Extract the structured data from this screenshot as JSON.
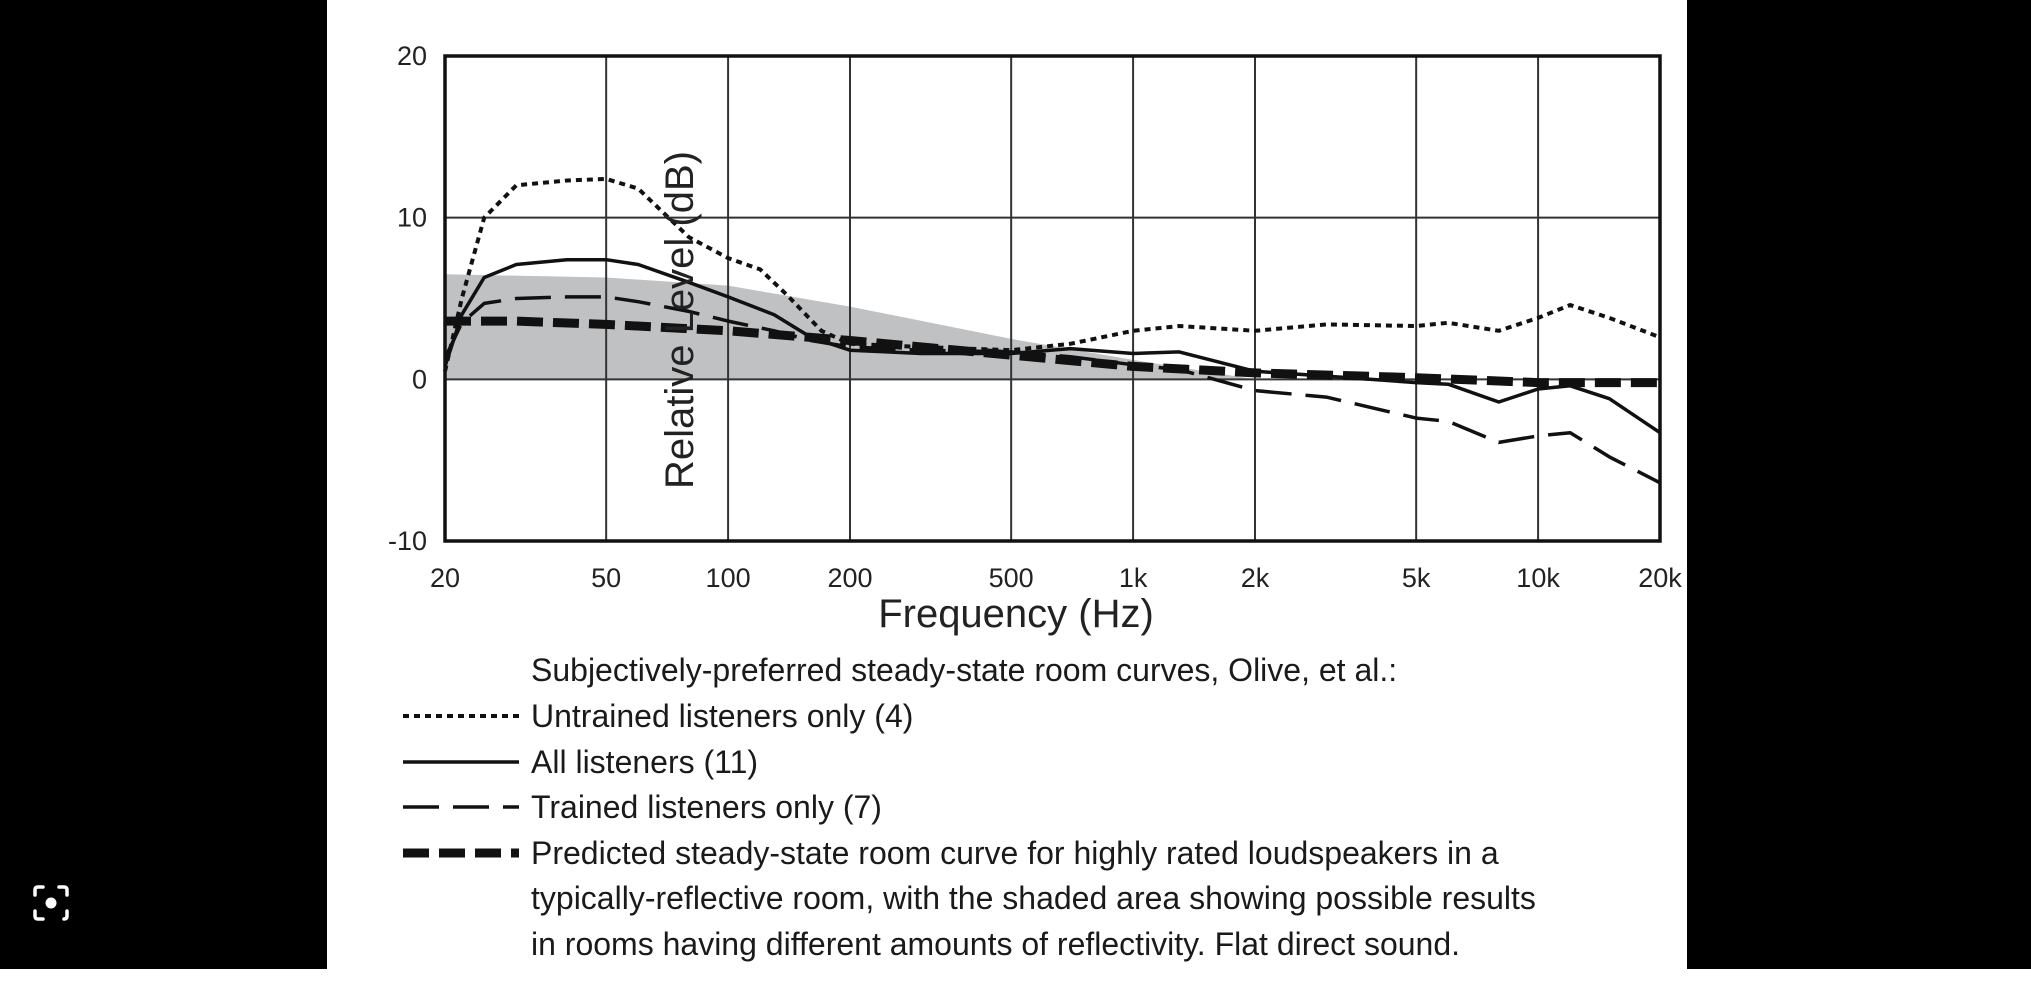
{
  "chart_data": {
    "type": "line",
    "xlabel": "Frequency (Hz)",
    "ylabel": "Relative Level (dB)",
    "xscale": "log",
    "xlim": [
      20,
      20000
    ],
    "ylim": [
      -10,
      20
    ],
    "grid": true,
    "x_ticks": [
      20,
      50,
      100,
      200,
      500,
      1000,
      2000,
      5000,
      10000,
      20000
    ],
    "x_tick_labels": [
      "20",
      "50",
      "100",
      "200",
      "500",
      "1k",
      "2k",
      "5k",
      "10k",
      "20k"
    ],
    "y_ticks": [
      20,
      10,
      0,
      -10
    ],
    "y_tick_labels": [
      "20",
      "10",
      "0",
      "-10"
    ],
    "legend_position": "below",
    "shaded_band": {
      "upper": [
        [
          20,
          6.5
        ],
        [
          50,
          6.3
        ],
        [
          100,
          5.8
        ],
        [
          200,
          4.5
        ],
        [
          500,
          2.5
        ],
        [
          1000,
          1.2
        ],
        [
          2000,
          0
        ]
      ],
      "lower": [
        [
          20,
          0
        ],
        [
          2000,
          0
        ]
      ]
    },
    "series": [
      {
        "style": "dotted",
        "points": [
          [
            20,
            0.5
          ],
          [
            22,
            5
          ],
          [
            25,
            10
          ],
          [
            30,
            12
          ],
          [
            40,
            12.3
          ],
          [
            50,
            12.4
          ],
          [
            60,
            11.8
          ],
          [
            80,
            8.8
          ],
          [
            100,
            7.5
          ],
          [
            120,
            6.8
          ],
          [
            140,
            5.2
          ],
          [
            170,
            3
          ],
          [
            200,
            2.2
          ],
          [
            300,
            2.0
          ],
          [
            500,
            1.8
          ],
          [
            700,
            2.2
          ],
          [
            1000,
            3.0
          ],
          [
            1300,
            3.3
          ],
          [
            2000,
            3.0
          ],
          [
            3000,
            3.4
          ],
          [
            5000,
            3.3
          ],
          [
            6000,
            3.5
          ],
          [
            8000,
            3.0
          ],
          [
            10000,
            3.8
          ],
          [
            12000,
            4.6
          ],
          [
            15000,
            3.8
          ],
          [
            20000,
            2.6
          ]
        ]
      },
      {
        "style": "solid",
        "points": [
          [
            20,
            0.8
          ],
          [
            22,
            4
          ],
          [
            25,
            6.3
          ],
          [
            30,
            7.1
          ],
          [
            40,
            7.4
          ],
          [
            50,
            7.4
          ],
          [
            60,
            7.1
          ],
          [
            80,
            6.0
          ],
          [
            100,
            5.1
          ],
          [
            130,
            4.0
          ],
          [
            160,
            2.6
          ],
          [
            200,
            1.8
          ],
          [
            300,
            1.6
          ],
          [
            500,
            1.6
          ],
          [
            700,
            1.9
          ],
          [
            1000,
            1.6
          ],
          [
            1300,
            1.7
          ],
          [
            2000,
            0.5
          ],
          [
            3000,
            0.2
          ],
          [
            5000,
            -0.2
          ],
          [
            6000,
            -0.3
          ],
          [
            8000,
            -1.4
          ],
          [
            10000,
            -0.6
          ],
          [
            12000,
            -0.4
          ],
          [
            15000,
            -1.2
          ],
          [
            20000,
            -3.3
          ]
        ]
      },
      {
        "style": "long-dash",
        "points": [
          [
            20,
            1.3
          ],
          [
            22,
            3.5
          ],
          [
            25,
            4.7
          ],
          [
            30,
            5.0
          ],
          [
            40,
            5.1
          ],
          [
            50,
            5.1
          ],
          [
            60,
            4.8
          ],
          [
            80,
            4.2
          ],
          [
            100,
            3.6
          ],
          [
            130,
            3.0
          ],
          [
            160,
            2.4
          ],
          [
            200,
            2.0
          ],
          [
            300,
            1.8
          ],
          [
            500,
            1.7
          ],
          [
            700,
            1.4
          ],
          [
            1000,
            0.9
          ],
          [
            1300,
            0.6
          ],
          [
            2000,
            -0.7
          ],
          [
            3000,
            -1.1
          ],
          [
            5000,
            -2.4
          ],
          [
            6000,
            -2.6
          ],
          [
            8000,
            -3.9
          ],
          [
            10000,
            -3.5
          ],
          [
            12000,
            -3.3
          ],
          [
            15000,
            -4.8
          ],
          [
            20000,
            -6.4
          ]
        ]
      },
      {
        "style": "heavy-dash",
        "points": [
          [
            20,
            3.6
          ],
          [
            30,
            3.6
          ],
          [
            50,
            3.4
          ],
          [
            100,
            3.0
          ],
          [
            200,
            2.4
          ],
          [
            500,
            1.5
          ],
          [
            1000,
            0.8
          ],
          [
            2000,
            0.4
          ],
          [
            5000,
            0.1
          ],
          [
            10000,
            -0.2
          ],
          [
            20000,
            -0.2
          ]
        ]
      }
    ]
  },
  "legend": {
    "header": "Subjectively-preferred steady-state room curves, Olive, et al.:",
    "items": [
      {
        "style": "dotted",
        "label": "Untrained listeners only (4)"
      },
      {
        "style": "solid",
        "label": "All listeners (11)"
      },
      {
        "style": "long-dash",
        "label": "Trained listeners only (7)"
      },
      {
        "style": "heavy-dash",
        "label": "Predicted steady-state room curve for highly rated loudspeakers in a"
      }
    ],
    "continuation": [
      "typically-reflective room, with the shaded area showing possible results",
      "in rooms having different amounts of reflectivity.  Flat direct sound."
    ]
  },
  "viewer": {
    "lens_icon": "visual-search-icon"
  }
}
